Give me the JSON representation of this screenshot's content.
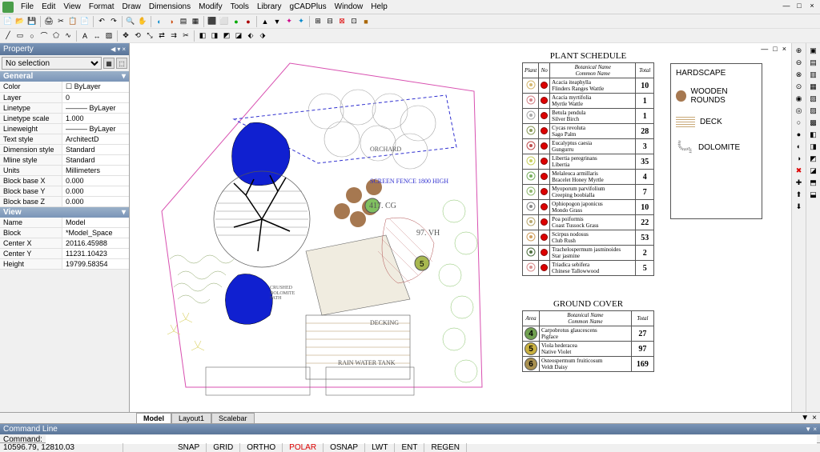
{
  "menu": [
    "File",
    "Edit",
    "View",
    "Format",
    "Draw",
    "Dimensions",
    "Modify",
    "Tools",
    "Library",
    "gCADPlus",
    "Window",
    "Help"
  ],
  "prop": {
    "title": "Property",
    "sel": "No selection",
    "general_title": "General",
    "general": [
      {
        "k": "Color",
        "v": "☐ ByLayer"
      },
      {
        "k": "Layer",
        "v": "0"
      },
      {
        "k": "Linetype",
        "v": "——— ByLayer"
      },
      {
        "k": "Linetype scale",
        "v": "1.000"
      },
      {
        "k": "Lineweight",
        "v": "——— ByLayer"
      },
      {
        "k": "Text style",
        "v": "ArchitectD"
      },
      {
        "k": "Dimension style",
        "v": "Standard"
      },
      {
        "k": "Mline style",
        "v": "Standard"
      },
      {
        "k": "Units",
        "v": "Millimeters"
      },
      {
        "k": "Block base X",
        "v": "0.000"
      },
      {
        "k": "Block base Y",
        "v": "0.000"
      },
      {
        "k": "Block base Z",
        "v": "0.000"
      }
    ],
    "view_title": "View",
    "view": [
      {
        "k": "Name",
        "v": "Model"
      },
      {
        "k": "Block",
        "v": "*Model_Space"
      },
      {
        "k": "Center X",
        "v": "20116.45988"
      },
      {
        "k": "Center Y",
        "v": "11231.10423"
      },
      {
        "k": "Height",
        "v": "19799.58354"
      }
    ]
  },
  "tabs": [
    "Model",
    "Layout1",
    "Scalebar"
  ],
  "cmd": {
    "title": "Command Line",
    "label": "Command:",
    "value": ""
  },
  "coords": "10596.79, 12810.03",
  "modes": [
    "SNAP",
    "GRID",
    "ORTHO",
    "POLAR",
    "OSNAP",
    "LWT",
    "ENT",
    "REGEN"
  ],
  "active_mode": "POLAR",
  "plant_schedule": {
    "title": "PLANT SCHEDULE",
    "headers": [
      "Plant",
      "No",
      "Botanical Name\nCommon Name",
      "Total"
    ],
    "rows": [
      {
        "bot": "Acacia iteaphylla",
        "com": "Flinders Ranges Wattle",
        "tot": "10",
        "c": "#d4b870"
      },
      {
        "bot": "Acacia myrtifolia",
        "com": "Myrtle Wattle",
        "tot": "1",
        "c": "#d4858a"
      },
      {
        "bot": "Betula pendula",
        "com": "Silver Birch",
        "tot": "1",
        "c": "#aaa"
      },
      {
        "bot": "Cycas revoluta",
        "com": "Sago Palm",
        "tot": "28",
        "c": "#8a9a5a"
      },
      {
        "bot": "Eucalyptus caesia",
        "com": "Gungurru",
        "tot": "3",
        "c": "#c05050"
      },
      {
        "bot": "Libertia peregrinans",
        "com": "Libertia",
        "tot": "35",
        "c": "#c8d060"
      },
      {
        "bot": "Melaleuca armillaris",
        "com": "Bracelet Honey Myrtle",
        "tot": "4",
        "c": "#7ab060"
      },
      {
        "bot": "Myoporum parvifolium",
        "com": "Creeping boobialla",
        "tot": "7",
        "c": "#90b870"
      },
      {
        "bot": "Ophiopogon japonicus",
        "com": "Mondo Grass",
        "tot": "10",
        "c": "#888"
      },
      {
        "bot": "Poa poiformis",
        "com": "Coast Tussock Grass",
        "tot": "22",
        "c": "#b8a870"
      },
      {
        "bot": "Scirpus nodosus",
        "com": "Club Rush",
        "tot": "53",
        "c": "#d0a060"
      },
      {
        "bot": "Trachelospermum jasminoides",
        "com": "Star jasmine",
        "tot": "2",
        "c": "#507040"
      },
      {
        "bot": "Triadica sebifera",
        "com": "Chinese Tallowwood",
        "tot": "5",
        "c": "#d89090"
      }
    ]
  },
  "ground_cover": {
    "title": "GROUND COVER",
    "headers": [
      "Area",
      "Botanical Name\nCommon Name",
      "Total"
    ],
    "rows": [
      {
        "a": "4",
        "bot": "Carpobrotus glaucescens",
        "com": "Pigface",
        "tot": "27",
        "c": "#70a050"
      },
      {
        "a": "5",
        "bot": "Viola hederacea",
        "com": "Native Violet",
        "tot": "97",
        "c": "#c8b040"
      },
      {
        "a": "6",
        "bot": "Osteospermum fruiticosum",
        "com": "Veldt Daisy",
        "tot": "169",
        "c": "#a89050"
      }
    ]
  },
  "hardscape": {
    "title": "HARDSCAPE",
    "items": [
      "WOODEN ROUNDS",
      "DECK",
      "DOLOMITE"
    ]
  },
  "canvas_labels": {
    "orchard": "ORCHARD",
    "screen": "SCREEN FENCE 1800 HIGH",
    "decking": "DECKING",
    "rain": "RAIN WATER TANK",
    "dolomite": "CRUSHED\nDOLOMITE\nPATH",
    "cg": "417. CG",
    "vh": "97. VH"
  },
  "colors": {
    "water": "#1020d0",
    "grass": "#6a8a3a",
    "wooden": "#a67850",
    "accent_green": "#80c060",
    "accent_yellow": "#d8d060",
    "magenta": "#d850b0"
  }
}
